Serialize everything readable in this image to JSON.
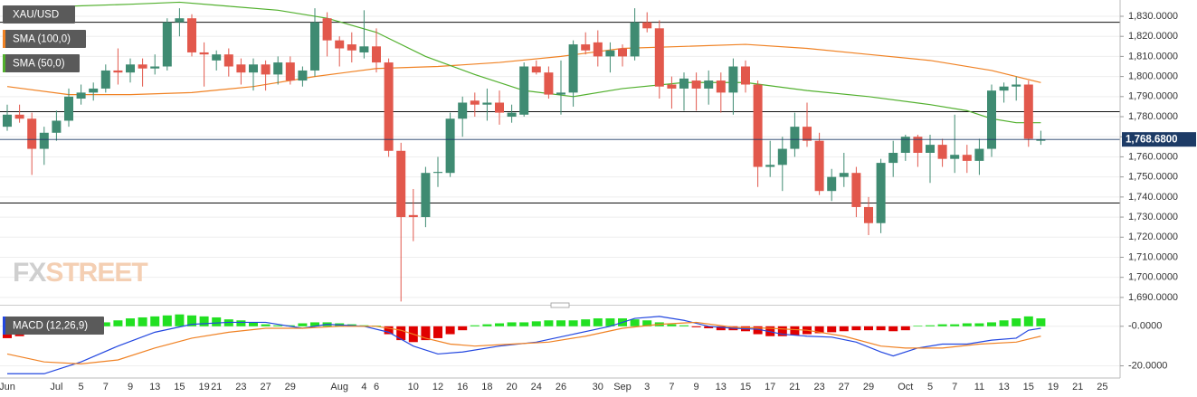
{
  "chart_data": [
    {
      "type": "candlestick",
      "name": "XAU/USD",
      "categories": [
        "Jun",
        null,
        null,
        null,
        "Jul",
        null,
        "5",
        null,
        "7",
        null,
        "9",
        null,
        "13",
        null,
        "15",
        null,
        "19",
        "21",
        null,
        "23",
        null,
        "27",
        null,
        "29",
        null,
        null,
        null,
        "Aug",
        null,
        "4",
        "6",
        null,
        null,
        "10",
        null,
        "12",
        null,
        "16",
        null,
        "18",
        null,
        "20",
        null,
        "24",
        null,
        "26",
        null,
        null,
        "30",
        null,
        "Sep",
        null,
        "3",
        null,
        "7",
        null,
        "9",
        null,
        "13",
        null,
        "15",
        null,
        "17",
        null,
        "21",
        null,
        "23",
        null,
        "27",
        null,
        "29",
        null,
        null,
        "Oct",
        null,
        "5",
        null,
        "7",
        null,
        "11",
        null,
        "13",
        null,
        "15",
        null,
        "19",
        null,
        "21",
        null,
        "25"
      ],
      "open": [
        1775,
        1781,
        1779,
        1764,
        1772,
        1778,
        1789,
        1792,
        1794,
        1803,
        1802,
        1806,
        1804,
        1805,
        1827,
        1829,
        1812,
        1808,
        1811,
        1806,
        1802,
        1806,
        1801,
        1807,
        1798,
        1803,
        1829,
        1818,
        1816,
        1812,
        1815,
        1807,
        1763,
        1731,
        1730,
        1752,
        1752,
        1779,
        1788,
        1786,
        1787,
        1780,
        1781,
        1805,
        1802,
        1791,
        1792,
        1816,
        1817,
        1810,
        1814,
        1810,
        1827,
        1824,
        1796,
        1794,
        1798,
        1794,
        1798,
        1792,
        1805,
        1796,
        1755,
        1756,
        1764,
        1775,
        1768,
        1743,
        1750,
        1752,
        1735,
        1727,
        1757,
        1762,
        1770,
        1762,
        1766,
        1759,
        1761,
        1758,
        1764,
        1793,
        1795,
        1796,
        1768,
        null,
        null,
        null,
        null,
        null
      ],
      "high": [
        1786,
        1786,
        1782,
        1775,
        1783,
        1794,
        1796,
        1797,
        1806,
        1814,
        1809,
        1809,
        1811,
        1829,
        1834,
        1831,
        1817,
        1813,
        1814,
        1809,
        1809,
        1808,
        1810,
        1810,
        1805,
        1834,
        1832,
        1820,
        1822,
        1833,
        1824,
        1809,
        1767,
        1744,
        1755,
        1760,
        1782,
        1790,
        1792,
        1794,
        1793,
        1786,
        1807,
        1808,
        1805,
        1808,
        1818,
        1822,
        1823,
        1817,
        1816,
        1834,
        1832,
        1828,
        1800,
        1802,
        1802,
        1803,
        1802,
        1809,
        1808,
        1798,
        1768,
        1770,
        1782,
        1787,
        1772,
        1754,
        1762,
        1755,
        1740,
        1759,
        1768,
        1771,
        1771,
        1771,
        1769,
        1781,
        1766,
        1769,
        1796,
        1797,
        1800,
        1798,
        1773,
        null,
        null,
        null,
        null,
        null
      ],
      "low": [
        1773,
        1777,
        1751,
        1756,
        1768,
        1775,
        1786,
        1788,
        1792,
        1796,
        1797,
        1795,
        1801,
        1803,
        1820,
        1810,
        1795,
        1803,
        1800,
        1796,
        1793,
        1793,
        1796,
        1796,
        1795,
        1800,
        1810,
        1805,
        1807,
        1809,
        1802,
        1760,
        1688,
        1718,
        1725,
        1745,
        1750,
        1770,
        1780,
        1778,
        1776,
        1777,
        1780,
        1801,
        1789,
        1781,
        1785,
        1811,
        1805,
        1802,
        1805,
        1808,
        1822,
        1789,
        1784,
        1783,
        1783,
        1786,
        1782,
        1781,
        1792,
        1745,
        1750,
        1743,
        1760,
        1765,
        1741,
        1738,
        1745,
        1730,
        1721,
        1722,
        1750,
        1758,
        1755,
        1747,
        1755,
        1752,
        1752,
        1751,
        1760,
        1787,
        1788,
        1765,
        1766,
        null,
        null,
        null,
        null,
        null
      ],
      "close": [
        1781,
        1779,
        1764,
        1772,
        1778,
        1790,
        1792,
        1794,
        1803,
        1802,
        1806,
        1804,
        1805,
        1827,
        1829,
        1812,
        1811,
        1811,
        1805,
        1802,
        1806,
        1801,
        1807,
        1798,
        1803,
        1827,
        1818,
        1814,
        1813,
        1815,
        1807,
        1763,
        1730,
        1730,
        1752,
        1752.5,
        1779,
        1787,
        1786,
        1787,
        1782,
        1782,
        1805,
        1802,
        1791,
        1792,
        1816,
        1813,
        1810,
        1813,
        1810,
        1827,
        1824,
        1795,
        1794,
        1799,
        1794,
        1798,
        1792,
        1805,
        1796,
        1755,
        1756,
        1764,
        1775,
        1768,
        1743,
        1750,
        1752,
        1735,
        1727,
        1757,
        1762,
        1770,
        1762,
        1766,
        1759,
        1761,
        1758,
        1764,
        1793,
        1795,
        1796,
        1769,
        1768.68,
        null,
        null,
        null,
        null,
        null
      ],
      "up_color": "#3f8b72",
      "down_color": "#e2584c",
      "ylim": [
        1686.8,
        1838.1
      ],
      "yticks": [
        {
          "value": 1690,
          "label": "1,690.0000"
        },
        {
          "value": 1700,
          "label": "1,700.0000"
        },
        {
          "value": 1710,
          "label": "1,710.0000"
        },
        {
          "value": 1720,
          "label": "1,720.0000"
        },
        {
          "value": 1730,
          "label": "1,730.0000"
        },
        {
          "value": 1740,
          "label": "1,740.0000"
        },
        {
          "value": 1750,
          "label": "1,750.0000"
        },
        {
          "value": 1760,
          "label": "1,760.0000"
        },
        {
          "value": 1770,
          "label": "1,770.0000"
        },
        {
          "value": 1780,
          "label": "1,780.0000"
        },
        {
          "value": 1790,
          "label": "1,790.0000"
        },
        {
          "value": 1800,
          "label": "1,800.0000"
        },
        {
          "value": 1810,
          "label": "1,810.0000"
        },
        {
          "value": 1820,
          "label": "1,820.0000"
        },
        {
          "value": 1830,
          "label": "1,830.0000"
        }
      ],
      "grid": true,
      "levels": [
        1827,
        1782.5,
        1737
      ],
      "level_color": "#111111",
      "last_price": {
        "value": 1768.68,
        "label": "1,768.6800"
      },
      "last_color": "#1d3b66",
      "overlays": [
        {
          "name": "SMA (100,0)",
          "color": "#f08224",
          "x": [
            0,
            5,
            10,
            15,
            20,
            25,
            30,
            35,
            40,
            45,
            50,
            55,
            60,
            65,
            70,
            75,
            80,
            84
          ],
          "values": [
            1795,
            1791,
            1791,
            1792,
            1795,
            1800,
            1804,
            1805,
            1807,
            1810,
            1814,
            1815,
            1816,
            1814,
            1811,
            1808,
            1803,
            1797
          ]
        },
        {
          "name": "SMA (50,0)",
          "color": "#52b02e",
          "x": [
            0,
            5,
            10,
            14,
            18,
            22,
            26,
            30,
            34,
            38,
            42,
            46,
            50,
            55,
            60,
            65,
            70,
            75,
            78,
            80,
            82,
            84
          ],
          "values": [
            1833,
            1835,
            1836,
            1837,
            1835,
            1833,
            1829,
            1822,
            1810,
            1801,
            1793,
            1790,
            1794,
            1797,
            1797,
            1793,
            1790,
            1786,
            1783,
            1779,
            1777,
            1777
          ]
        }
      ],
      "watermark": [
        "FX",
        "STREET"
      ]
    },
    {
      "type": "bar",
      "name": "MACD (12,26,9)",
      "legend_color": "#2347e0",
      "values": [
        -6,
        -5,
        -4,
        -3,
        -2,
        -1,
        -0.5,
        0.5,
        2,
        3,
        4,
        4.5,
        5,
        5.5,
        6,
        5.5,
        5,
        4.5,
        3.5,
        3,
        2,
        1,
        0.5,
        0.5,
        1.5,
        2,
        2,
        1.5,
        1,
        0.5,
        0.3,
        -4,
        -7,
        -8,
        -7,
        -6,
        -4,
        -2,
        0.5,
        1,
        1.5,
        2,
        2,
        2.5,
        3,
        3,
        3,
        3.5,
        4,
        4,
        4,
        3.5,
        3,
        2,
        1,
        0.5,
        -0.5,
        -1,
        -2,
        -2,
        -2.5,
        -4,
        -5,
        -5,
        -4.5,
        -4,
        -3.5,
        -3,
        -2.5,
        -2,
        -2,
        -2,
        -2.5,
        -2,
        0.3,
        0.5,
        1,
        1,
        1.5,
        1.5,
        2,
        3,
        4,
        5,
        4,
        null,
        null,
        null,
        null,
        null
      ],
      "up_color": "#22e022",
      "down_color": "#e00000",
      "lines": [
        {
          "color": "#2347e0",
          "x": [
            0,
            3,
            6,
            9,
            12,
            15,
            18,
            21,
            24,
            26,
            29,
            31,
            33,
            35,
            37,
            40,
            43,
            46,
            49,
            51,
            53,
            55,
            57,
            59,
            61,
            63,
            65,
            67,
            69,
            71,
            72,
            74,
            76,
            78,
            80,
            82,
            83,
            84
          ],
          "values": [
            -24,
            -24,
            -18,
            -10,
            -3,
            1,
            2,
            2,
            -1,
            1,
            0,
            -3,
            -10,
            -14,
            -13,
            -10,
            -8,
            -4,
            0,
            4,
            5,
            3,
            0,
            -1,
            -1.5,
            -4,
            -5,
            -5.5,
            -8,
            -13,
            -15,
            -11,
            -9,
            -9,
            -7,
            -6,
            -2,
            -1
          ]
        },
        {
          "color": "#f08224",
          "x": [
            0,
            3,
            6,
            9,
            12,
            15,
            18,
            21,
            24,
            27,
            30,
            32,
            34,
            36,
            38,
            41,
            44,
            47,
            50,
            53,
            56,
            59,
            62,
            65,
            68,
            71,
            73,
            76,
            79,
            82,
            84
          ],
          "values": [
            -14,
            -18,
            -19,
            -17,
            -11,
            -6,
            -3,
            -1,
            -1,
            0,
            0,
            -2,
            -6,
            -9,
            -10,
            -9,
            -8,
            -5,
            -1,
            1,
            2,
            -0.5,
            -1,
            -2,
            -5,
            -10,
            -11,
            -11,
            -9,
            -8,
            -5
          ]
        }
      ],
      "ylim": [
        -25.7,
        8.6
      ],
      "yticks": [
        {
          "value": 0,
          "label": "-0.0000"
        },
        {
          "value": -20,
          "label": "-20.0000"
        }
      ]
    }
  ]
}
